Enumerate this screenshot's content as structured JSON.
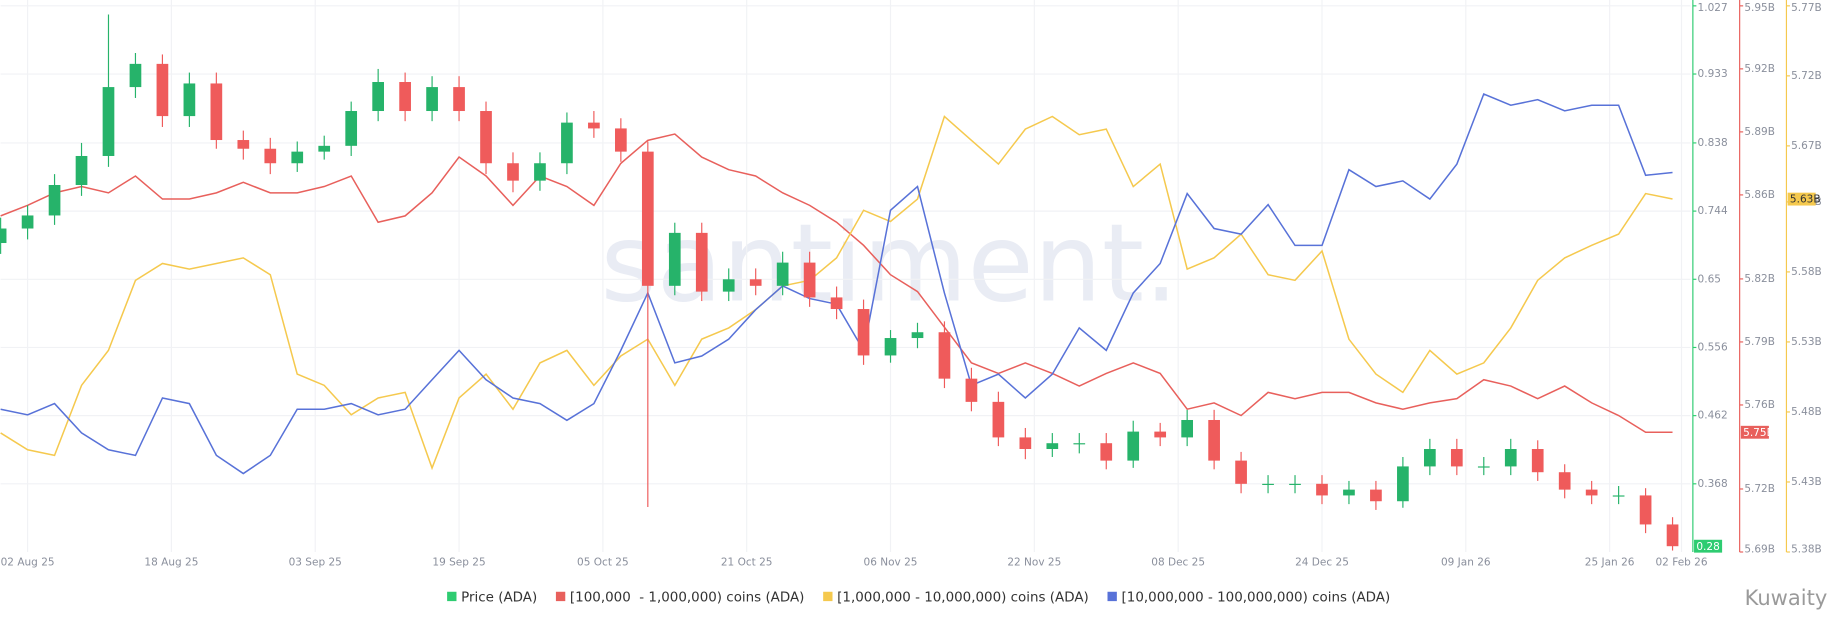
{
  "chart_data": {
    "type": "combo",
    "watermark": "santiment.",
    "credit": "Kuwaity",
    "grid": true,
    "x": [
      "2025-07-30",
      "2025-08-02",
      "2025-08-05",
      "2025-08-08",
      "2025-08-11",
      "2025-08-14",
      "2025-08-17",
      "2025-08-20",
      "2025-08-23",
      "2025-08-26",
      "2025-08-29",
      "2025-09-01",
      "2025-09-04",
      "2025-09-07",
      "2025-09-10",
      "2025-09-13",
      "2025-09-16",
      "2025-09-19",
      "2025-09-22",
      "2025-09-25",
      "2025-09-28",
      "2025-10-01",
      "2025-10-04",
      "2025-10-07",
      "2025-10-10",
      "2025-10-13",
      "2025-10-16",
      "2025-10-19",
      "2025-10-22",
      "2025-10-25",
      "2025-10-28",
      "2025-10-31",
      "2025-11-03",
      "2025-11-06",
      "2025-11-09",
      "2025-11-12",
      "2025-11-15",
      "2025-11-18",
      "2025-11-21",
      "2025-11-24",
      "2025-11-27",
      "2025-11-30",
      "2025-12-03",
      "2025-12-06",
      "2025-12-09",
      "2025-12-12",
      "2025-12-15",
      "2025-12-18",
      "2025-12-21",
      "2025-12-24",
      "2025-12-27",
      "2025-12-30",
      "2026-01-02",
      "2026-01-05",
      "2026-01-08",
      "2026-01-11",
      "2026-01-14",
      "2026-01-17",
      "2026-01-20",
      "2026-01-23",
      "2026-01-26",
      "2026-01-29",
      "2026-02-01"
    ],
    "xlim": [
      "2025-07-30",
      "2026-02-03"
    ],
    "xticks": [
      {
        "value": "2025-08-02",
        "label": "02 Aug 25"
      },
      {
        "value": "2025-08-18",
        "label": "18 Aug 25"
      },
      {
        "value": "2025-09-03",
        "label": "03 Sep 25"
      },
      {
        "value": "2025-09-19",
        "label": "19 Sep 25"
      },
      {
        "value": "2025-10-05",
        "label": "05 Oct 25"
      },
      {
        "value": "2025-10-21",
        "label": "21 Oct 25"
      },
      {
        "value": "2025-11-06",
        "label": "06 Nov 25"
      },
      {
        "value": "2025-11-22",
        "label": "22 Nov 25"
      },
      {
        "value": "2025-12-08",
        "label": "08 Dec 25"
      },
      {
        "value": "2025-12-24",
        "label": "24 Dec 25"
      },
      {
        "value": "2026-01-09",
        "label": "09 Jan 26"
      },
      {
        "value": "2026-01-25",
        "label": "25 Jan 26"
      },
      {
        "value": "2026-02-02",
        "label": "02 Feb 26"
      }
    ],
    "ylim": [
      0.274,
      1.027
    ],
    "yticks": [
      1.027,
      0.933,
      0.838,
      0.744,
      0.65,
      0.556,
      0.462,
      0.368
    ],
    "y2lim": [
      5690000000,
      5950000000
    ],
    "y2ticks": [
      {
        "value": 5950000000,
        "label": "5.95B"
      },
      {
        "value": 5920000000,
        "label": "5.92B"
      },
      {
        "value": 5890000000,
        "label": "5.89B"
      },
      {
        "value": 5860000000,
        "label": "5.86B"
      },
      {
        "value": 5820000000,
        "label": "5.82B"
      },
      {
        "value": 5790000000,
        "label": "5.79B"
      },
      {
        "value": 5760000000,
        "label": "5.76B"
      },
      {
        "value": 5720000000,
        "label": "5.72B"
      },
      {
        "value": 5690000000,
        "label": "5.69B"
      }
    ],
    "y3lim": [
      5380000000,
      5770000000
    ],
    "y3ticks": [
      {
        "value": 5770000000,
        "label": "5.77B"
      },
      {
        "value": 5720000000,
        "label": "5.72B"
      },
      {
        "value": 5670000000,
        "label": "5.67B"
      },
      {
        "value": 5630000000,
        "label": "5.63B"
      },
      {
        "value": 5580000000,
        "label": "5.58B"
      },
      {
        "value": 5530000000,
        "label": "5.53B"
      },
      {
        "value": 5480000000,
        "label": "5.48B"
      },
      {
        "value": 5430000000,
        "label": "5.43B"
      },
      {
        "value": 5380000000,
        "label": "5.38B"
      }
    ],
    "series": [
      {
        "name": "Price (ADA)",
        "type": "candlestick",
        "color": "#2ecc71",
        "color_up": "#26b36a",
        "color_down": "#ef5b5b",
        "last_label": "0.28",
        "open": [
          0.7,
          0.72,
          0.738,
          0.78,
          0.82,
          0.915,
          0.947,
          0.875,
          0.92,
          0.842,
          0.83,
          0.81,
          0.826,
          0.834,
          0.882,
          0.922,
          0.882,
          0.915,
          0.882,
          0.81,
          0.786,
          0.81,
          0.866,
          0.858,
          0.826,
          0.641,
          0.714,
          0.633,
          0.65,
          0.641,
          0.673,
          0.625,
          0.609,
          0.545,
          0.569,
          0.577,
          0.513,
          0.481,
          0.432,
          0.416,
          0.424,
          0.424,
          0.4,
          0.44,
          0.432,
          0.456,
          0.4,
          0.368,
          0.368,
          0.368,
          0.352,
          0.36,
          0.344,
          0.392,
          0.416,
          0.392,
          0.392,
          0.416,
          0.384,
          0.36,
          0.352,
          0.352,
          0.312
        ],
        "high": [
          0.735,
          0.752,
          0.795,
          0.838,
          1.015,
          0.962,
          0.96,
          0.935,
          0.935,
          0.855,
          0.845,
          0.84,
          0.848,
          0.895,
          0.94,
          0.935,
          0.93,
          0.93,
          0.895,
          0.825,
          0.825,
          0.88,
          0.882,
          0.872,
          0.84,
          0.728,
          0.728,
          0.665,
          0.665,
          0.688,
          0.688,
          0.64,
          0.622,
          0.58,
          0.59,
          0.592,
          0.528,
          0.495,
          0.445,
          0.438,
          0.438,
          0.438,
          0.455,
          0.452,
          0.47,
          0.47,
          0.412,
          0.38,
          0.38,
          0.38,
          0.372,
          0.372,
          0.405,
          0.43,
          0.43,
          0.405,
          0.43,
          0.428,
          0.395,
          0.372,
          0.365,
          0.362,
          0.322
        ],
        "low": [
          0.685,
          0.705,
          0.725,
          0.765,
          0.805,
          0.9,
          0.86,
          0.86,
          0.83,
          0.815,
          0.795,
          0.798,
          0.815,
          0.82,
          0.868,
          0.868,
          0.868,
          0.868,
          0.795,
          0.77,
          0.772,
          0.795,
          0.845,
          0.812,
          0.336,
          0.628,
          0.62,
          0.62,
          0.628,
          0.628,
          0.612,
          0.595,
          0.532,
          0.535,
          0.555,
          0.5,
          0.468,
          0.42,
          0.402,
          0.405,
          0.41,
          0.388,
          0.39,
          0.42,
          0.42,
          0.388,
          0.355,
          0.355,
          0.355,
          0.34,
          0.34,
          0.332,
          0.335,
          0.38,
          0.38,
          0.38,
          0.38,
          0.372,
          0.348,
          0.34,
          0.34,
          0.3,
          0.276
        ],
        "close": [
          0.72,
          0.738,
          0.78,
          0.82,
          0.915,
          0.947,
          0.875,
          0.92,
          0.842,
          0.83,
          0.81,
          0.826,
          0.834,
          0.882,
          0.922,
          0.882,
          0.915,
          0.882,
          0.81,
          0.786,
          0.81,
          0.866,
          0.858,
          0.826,
          0.641,
          0.714,
          0.633,
          0.65,
          0.641,
          0.673,
          0.625,
          0.609,
          0.545,
          0.569,
          0.577,
          0.513,
          0.481,
          0.432,
          0.416,
          0.424,
          0.424,
          0.4,
          0.44,
          0.432,
          0.456,
          0.4,
          0.368,
          0.368,
          0.368,
          0.352,
          0.36,
          0.344,
          0.392,
          0.416,
          0.392,
          0.392,
          0.416,
          0.384,
          0.36,
          0.352,
          0.352,
          0.312,
          0.282
        ]
      },
      {
        "name": "[100,000  - 1,000,000) coins (ADA)",
        "type": "line",
        "axis": "y2",
        "color": "#e8605c",
        "last_label": "5.75B",
        "values": [
          5850000000,
          5855000000,
          5861000000,
          5864000000,
          5861000000,
          5869000000,
          5858000000,
          5858000000,
          5861000000,
          5866000000,
          5861000000,
          5861000000,
          5864000000,
          5869000000,
          5847000000,
          5850000000,
          5861000000,
          5878000000,
          5869000000,
          5855000000,
          5869000000,
          5864000000,
          5855000000,
          5875000000,
          5886000000,
          5889000000,
          5878000000,
          5872000000,
          5869000000,
          5861000000,
          5855000000,
          5847000000,
          5836000000,
          5822000000,
          5814000000,
          5797000000,
          5780000000,
          5775000000,
          5780000000,
          5775000000,
          5769000000,
          5775000000,
          5780000000,
          5775000000,
          5758000000,
          5761000000,
          5755000000,
          5766000000,
          5763000000,
          5766000000,
          5766000000,
          5761000000,
          5758000000,
          5761000000,
          5763000000,
          5772000000,
          5769000000,
          5763000000,
          5769000000,
          5761000000,
          5755000000,
          5747000000,
          5747000000
        ]
      },
      {
        "name": "[1,000,000 - 10,000,000) coins (ADA)",
        "type": "line",
        "axis": "y3",
        "color": "#f5c94e",
        "last_label": "5.63B",
        "values": [
          5465000000,
          5453000000,
          5449000000,
          5499000000,
          5524000000,
          5574000000,
          5586000000,
          5582000000,
          5586000000,
          5590000000,
          5578000000,
          5507000000,
          5499000000,
          5478000000,
          5490000000,
          5494000000,
          5440000000,
          5490000000,
          5507000000,
          5482000000,
          5515000000,
          5524000000,
          5499000000,
          5520000000,
          5532000000,
          5499000000,
          5532000000,
          5540000000,
          5553000000,
          5570000000,
          5574000000,
          5590000000,
          5624000000,
          5616000000,
          5632000000,
          5691000000,
          5674000000,
          5657000000,
          5682000000,
          5691000000,
          5678000000,
          5682000000,
          5641000000,
          5657000000,
          5582000000,
          5590000000,
          5607000000,
          5578000000,
          5574000000,
          5595000000,
          5532000000,
          5507000000,
          5494000000,
          5524000000,
          5507000000,
          5515000000,
          5540000000,
          5574000000,
          5590000000,
          5599000000,
          5607000000,
          5636000000,
          5632000000
        ]
      },
      {
        "name": "[10,000,000 - 100,000,000) coins (ADA)",
        "type": "line",
        "axis": "y3",
        "color": "#5872d8",
        "values": [
          5482000000,
          5478000000,
          5486000000,
          5465000000,
          5453000000,
          5449000000,
          5490000000,
          5486000000,
          5449000000,
          5436000000,
          5449000000,
          5482000000,
          5482000000,
          5486000000,
          5478000000,
          5482000000,
          5503000000,
          5524000000,
          5503000000,
          5490000000,
          5486000000,
          5474000000,
          5486000000,
          5524000000,
          5565000000,
          5515000000,
          5520000000,
          5532000000,
          5553000000,
          5570000000,
          5561000000,
          5557000000,
          5524000000,
          5624000000,
          5641000000,
          5565000000,
          5499000000,
          5507000000,
          5490000000,
          5507000000,
          5540000000,
          5524000000,
          5565000000,
          5586000000,
          5636000000,
          5611000000,
          5607000000,
          5628000000,
          5599000000,
          5599000000,
          5653000000,
          5641000000,
          5645000000,
          5632000000,
          5657000000,
          5707000000,
          5699000000,
          5703000000,
          5695000000,
          5699000000,
          5699000000,
          5649000000,
          5651000000
        ]
      }
    ]
  }
}
